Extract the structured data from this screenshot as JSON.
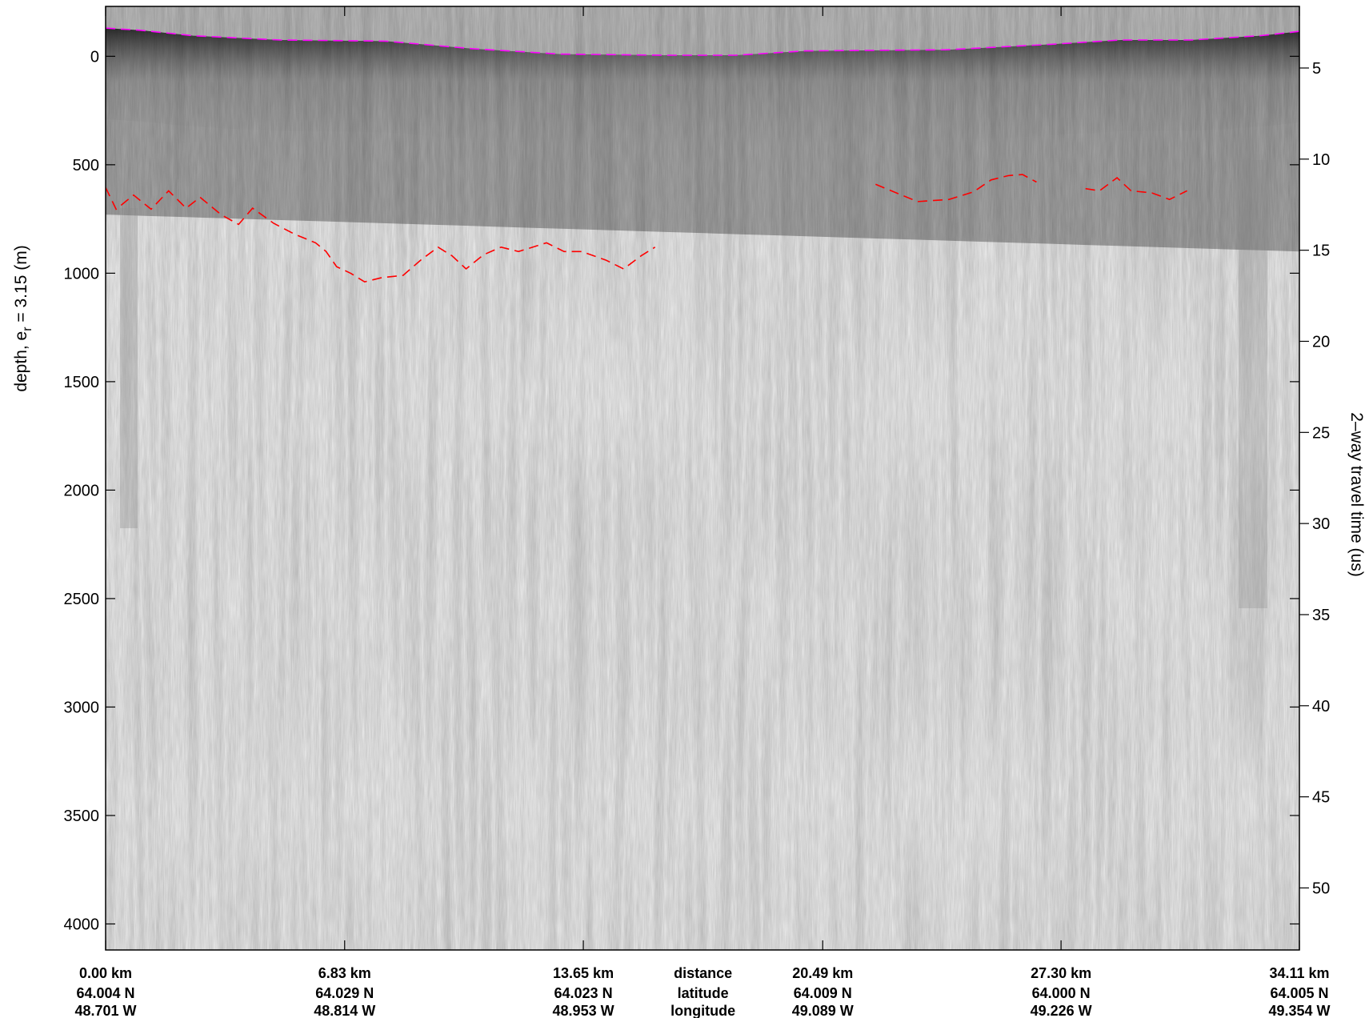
{
  "chart_data": {
    "type": "radargram",
    "colormap": "grayscale (dark = strong return)",
    "left_axis": {
      "label_main": "depth, e",
      "label_sub": "r",
      "label_tail": " = 3.15 (m)",
      "ticks": [
        0,
        500,
        1000,
        1500,
        2000,
        2500,
        3000,
        3500,
        4000
      ],
      "ylim": [
        -230,
        4120
      ],
      "direction": "downward"
    },
    "right_axis": {
      "label": "2–way travel time (us)",
      "ticks": [
        5,
        10,
        15,
        20,
        25,
        30,
        35,
        40,
        45,
        50
      ],
      "depth_at_5us": 54,
      "depth_per_5us": 420
    },
    "x_axis": {
      "range_km": [
        0,
        34.11
      ],
      "labels": [
        {
          "km": 0.0,
          "distance": "0.00 km",
          "latitude": "64.004 N",
          "longitude": "48.701 W"
        },
        {
          "km": 6.83,
          "distance": "6.83 km",
          "latitude": "64.029 N",
          "longitude": "48.814 W"
        },
        {
          "km": 13.65,
          "distance": "13.65 km",
          "latitude": "64.023 N",
          "longitude": "48.953 W"
        },
        {
          "km": 20.49,
          "distance": "20.49 km",
          "latitude": "64.009 N",
          "longitude": "49.089 W"
        },
        {
          "km": 27.3,
          "distance": "27.30 km",
          "latitude": "64.000 N",
          "longitude": "49.226 W"
        },
        {
          "km": 34.11,
          "distance": "34.11 km",
          "latitude": "64.005 N",
          "longitude": "49.354 W"
        }
      ],
      "row_titles": {
        "km": 17.07,
        "distance": "distance",
        "latitude": "latitude",
        "longitude": "longitude"
      }
    },
    "surface_pick": {
      "color": "#ff00ff",
      "points": [
        [
          0.0,
          -130
        ],
        [
          1.0,
          -120
        ],
        [
          2.5,
          -95
        ],
        [
          5.0,
          -75
        ],
        [
          8.0,
          -70
        ],
        [
          10.5,
          -35
        ],
        [
          13.0,
          -10
        ],
        [
          16.0,
          -5
        ],
        [
          18.0,
          -5
        ],
        [
          20.0,
          -25
        ],
        [
          24.0,
          -30
        ],
        [
          27.0,
          -55
        ],
        [
          29.0,
          -75
        ],
        [
          31.0,
          -75
        ],
        [
          33.0,
          -95
        ],
        [
          34.11,
          -115
        ]
      ]
    },
    "bed_pick": {
      "color": "#ff0000",
      "segments": [
        [
          [
            0.0,
            605
          ],
          [
            0.3,
            705
          ],
          [
            0.8,
            640
          ],
          [
            1.3,
            705
          ],
          [
            1.8,
            620
          ],
          [
            2.3,
            700
          ],
          [
            2.7,
            650
          ],
          [
            3.3,
            730
          ],
          [
            3.8,
            775
          ],
          [
            4.2,
            700
          ],
          [
            4.8,
            770
          ],
          [
            5.4,
            820
          ],
          [
            6.0,
            860
          ],
          [
            6.3,
            900
          ],
          [
            6.6,
            970
          ],
          [
            7.0,
            1000
          ],
          [
            7.4,
            1040
          ],
          [
            7.9,
            1020
          ],
          [
            8.5,
            1010
          ],
          [
            9.0,
            940
          ],
          [
            9.5,
            880
          ],
          [
            9.9,
            920
          ],
          [
            10.3,
            980
          ],
          [
            10.8,
            915
          ],
          [
            11.3,
            880
          ],
          [
            11.8,
            900
          ],
          [
            12.6,
            860
          ],
          [
            13.1,
            900
          ],
          [
            13.6,
            900
          ],
          [
            14.3,
            940
          ],
          [
            14.8,
            980
          ],
          [
            15.3,
            920
          ],
          [
            15.7,
            880
          ]
        ],
        [
          [
            22.0,
            590
          ],
          [
            22.3,
            610
          ],
          [
            23.2,
            670
          ],
          [
            24.1,
            660
          ],
          [
            24.8,
            625
          ],
          [
            25.3,
            570
          ],
          [
            25.8,
            550
          ],
          [
            26.2,
            545
          ],
          [
            26.6,
            580
          ]
        ],
        [
          [
            28.0,
            610
          ],
          [
            28.4,
            620
          ],
          [
            28.9,
            560
          ],
          [
            29.3,
            620
          ],
          [
            29.9,
            630
          ],
          [
            30.4,
            660
          ],
          [
            30.9,
            620
          ]
        ]
      ]
    }
  }
}
